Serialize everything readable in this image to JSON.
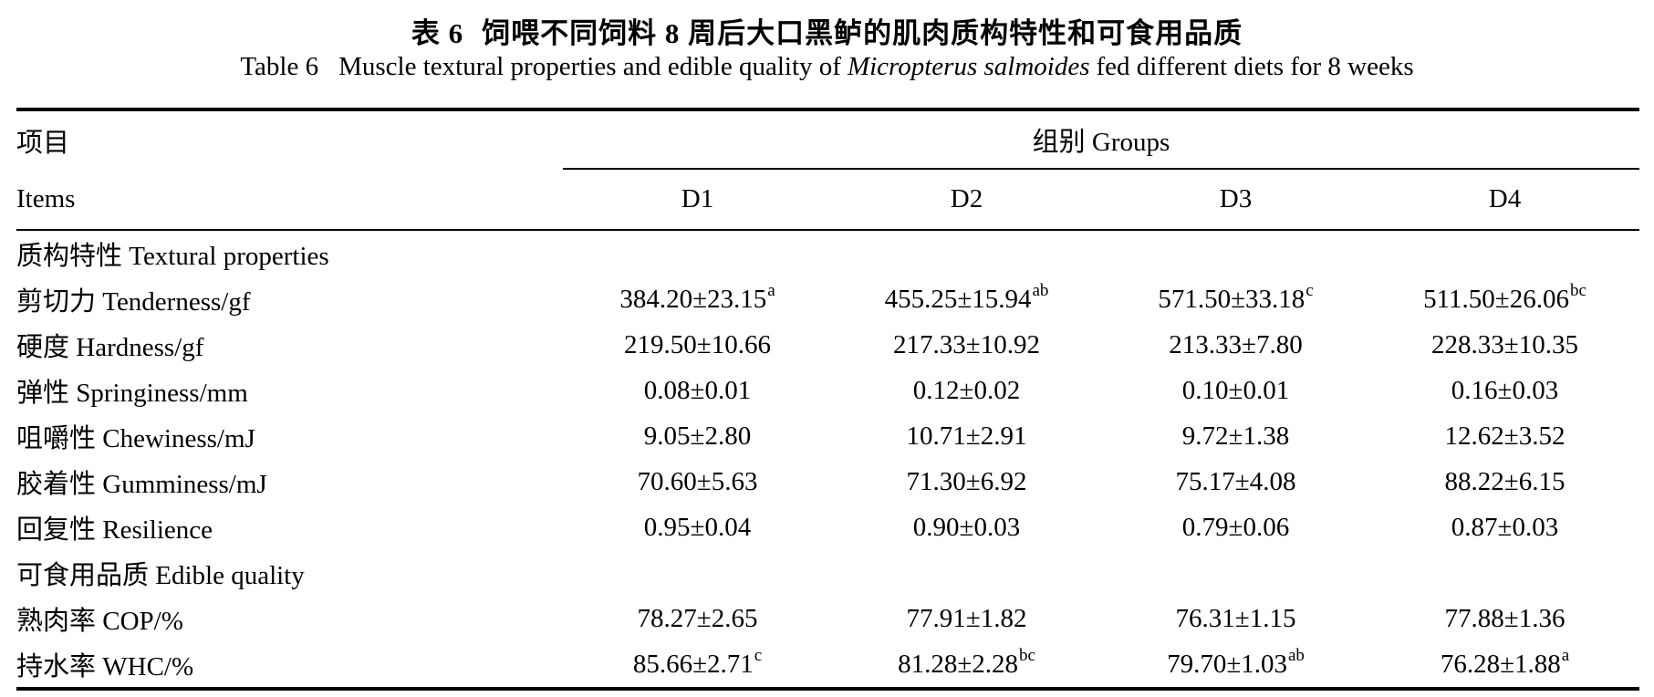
{
  "titles": {
    "zh_label": "表 6",
    "zh_text": "饲喂不同饲料 8 周后大口黑鲈的肌肉质构特性和可食用品质",
    "en_label": "Table 6",
    "en_before_species": "Muscle textural properties and edible quality of",
    "en_species": "Micropterus salmoides",
    "en_after_species": "fed different diets for 8 weeks"
  },
  "table": {
    "items_header_zh": "项目",
    "items_header_en": "Items",
    "groups_header": "组别 Groups",
    "group_columns": [
      "D1",
      "D2",
      "D3",
      "D4"
    ],
    "rows": [
      {
        "type": "section",
        "label": "质构特性 Textural properties"
      },
      {
        "type": "data",
        "label": "剪切力 Tenderness/gf",
        "values": [
          {
            "text": "384.20±23.15",
            "sup": "a"
          },
          {
            "text": "455.25±15.94",
            "sup": "ab"
          },
          {
            "text": "571.50±33.18",
            "sup": "c"
          },
          {
            "text": "511.50±26.06",
            "sup": "bc"
          }
        ]
      },
      {
        "type": "data",
        "label": "硬度 Hardness/gf",
        "values": [
          {
            "text": "219.50±10.66"
          },
          {
            "text": "217.33±10.92"
          },
          {
            "text": "213.33±7.80"
          },
          {
            "text": "228.33±10.35"
          }
        ]
      },
      {
        "type": "data",
        "label": "弹性 Springiness/mm",
        "values": [
          {
            "text": "0.08±0.01"
          },
          {
            "text": "0.12±0.02"
          },
          {
            "text": "0.10±0.01"
          },
          {
            "text": "0.16±0.03"
          }
        ]
      },
      {
        "type": "data",
        "label": "咀嚼性 Chewiness/mJ",
        "values": [
          {
            "text": "9.05±2.80"
          },
          {
            "text": "10.71±2.91"
          },
          {
            "text": "9.72±1.38"
          },
          {
            "text": "12.62±3.52"
          }
        ]
      },
      {
        "type": "data",
        "label": "胶着性 Gumminess/mJ",
        "values": [
          {
            "text": "70.60±5.63"
          },
          {
            "text": "71.30±6.92"
          },
          {
            "text": "75.17±4.08"
          },
          {
            "text": "88.22±6.15"
          }
        ]
      },
      {
        "type": "data",
        "label": "回复性 Resilience",
        "values": [
          {
            "text": "0.95±0.04"
          },
          {
            "text": "0.90±0.03"
          },
          {
            "text": "0.79±0.06"
          },
          {
            "text": "0.87±0.03"
          }
        ]
      },
      {
        "type": "section",
        "label": "可食用品质 Edible quality"
      },
      {
        "type": "data",
        "label": "熟肉率 COP/%",
        "values": [
          {
            "text": "78.27±2.65"
          },
          {
            "text": "77.91±1.82"
          },
          {
            "text": "76.31±1.15"
          },
          {
            "text": "77.88±1.36"
          }
        ]
      },
      {
        "type": "data",
        "label": "持水率 WHC/%",
        "values": [
          {
            "text": "85.66±2.71",
            "sup": "c"
          },
          {
            "text": "81.28±2.28",
            "sup": "bc"
          },
          {
            "text": "79.70±1.03",
            "sup": "ab"
          },
          {
            "text": "76.28±1.88",
            "sup": "a"
          }
        ]
      }
    ]
  }
}
